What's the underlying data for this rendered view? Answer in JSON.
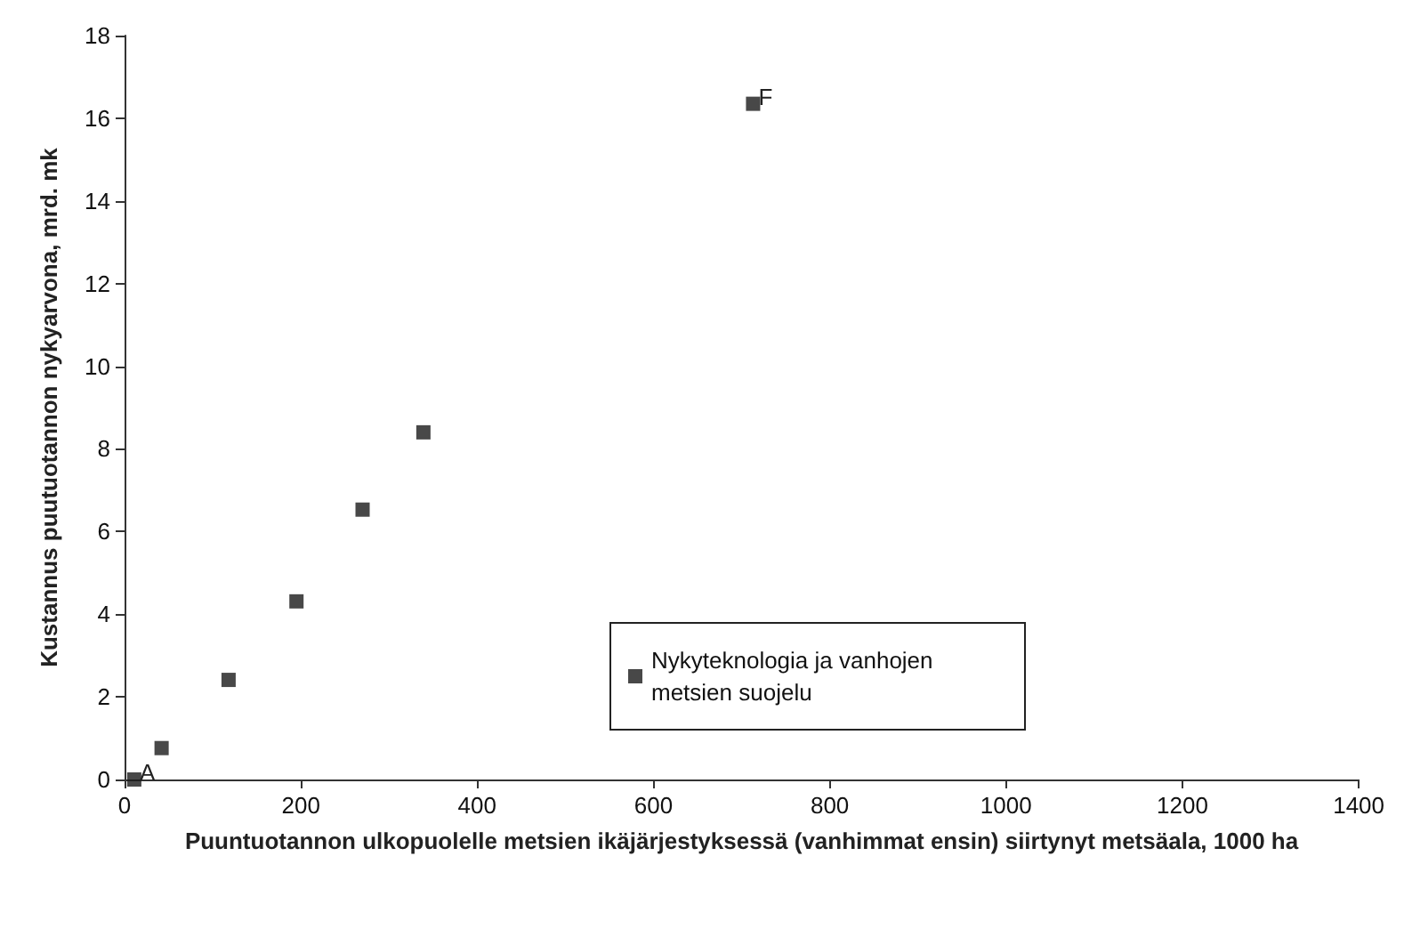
{
  "chart_data": {
    "type": "scatter",
    "xlabel": "Puuntuotannon ulkopuolelle metsien ikäjärjestyksessä (vanhimmat ensin) siirtynyt metsäala, 1000 ha",
    "ylabel": "Kustannus puutuotannon nykyarvona, mrd. mk",
    "x": [
      11,
      42,
      118,
      195,
      270,
      339,
      713
    ],
    "series": [
      {
        "name": "Nykyteknologia ja vanhojen metsien suojelu",
        "color": "#1a1a1a",
        "values": [
          0,
          0.76,
          2.41,
          4.31,
          6.53,
          8.4,
          16.35
        ]
      }
    ],
    "xlim": [
      0,
      1400
    ],
    "xticks": [
      0,
      200,
      400,
      600,
      800,
      1000,
      1200,
      1400
    ],
    "ylim": [
      0,
      18
    ],
    "yticks": [
      0,
      2,
      4,
      6,
      8,
      10,
      12,
      14,
      16,
      18
    ],
    "annotations": [
      {
        "text": "A",
        "x": 11,
        "y": 0
      },
      {
        "text": "F",
        "x": 713,
        "y": 16.35
      }
    ],
    "marker": "square",
    "legend": "right",
    "grid": false
  }
}
